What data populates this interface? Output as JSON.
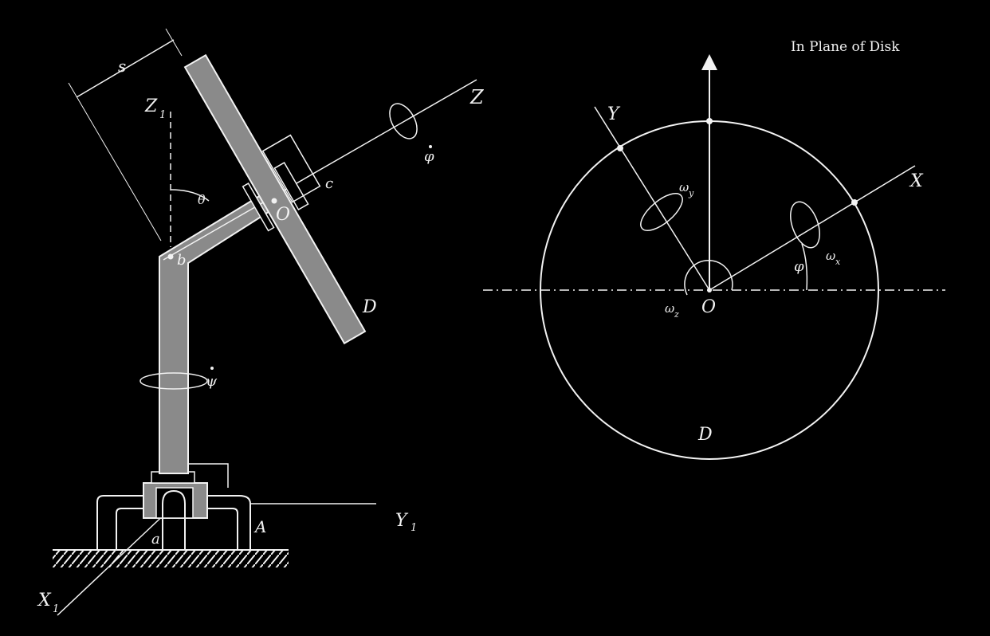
{
  "colors": {
    "background": "#000000",
    "line": "#f2f2f2",
    "shade": "#8a8a8a"
  },
  "left_figure": {
    "labels": {
      "s": "s",
      "z1": "Z",
      "z1_sub": "1",
      "z": "Z",
      "theta": "θ",
      "phi_dot": "φ",
      "c": "c",
      "o": "O",
      "b": "b",
      "d": "D",
      "psi_dot": "ψ",
      "y1": "Y",
      "y1_sub": "1",
      "a_lower": "a",
      "a_upper": "A",
      "x1": "X",
      "x1_sub": "1"
    }
  },
  "right_figure": {
    "note": "In Plane of Disk",
    "labels": {
      "y": "Y",
      "x": "X",
      "omega_y": "ω",
      "omega_y_sub": "y",
      "omega_x": "ω",
      "omega_x_sub": "x",
      "omega_z": "ω",
      "omega_z_sub": "z",
      "phi": "φ",
      "o": "O",
      "d": "D"
    }
  }
}
